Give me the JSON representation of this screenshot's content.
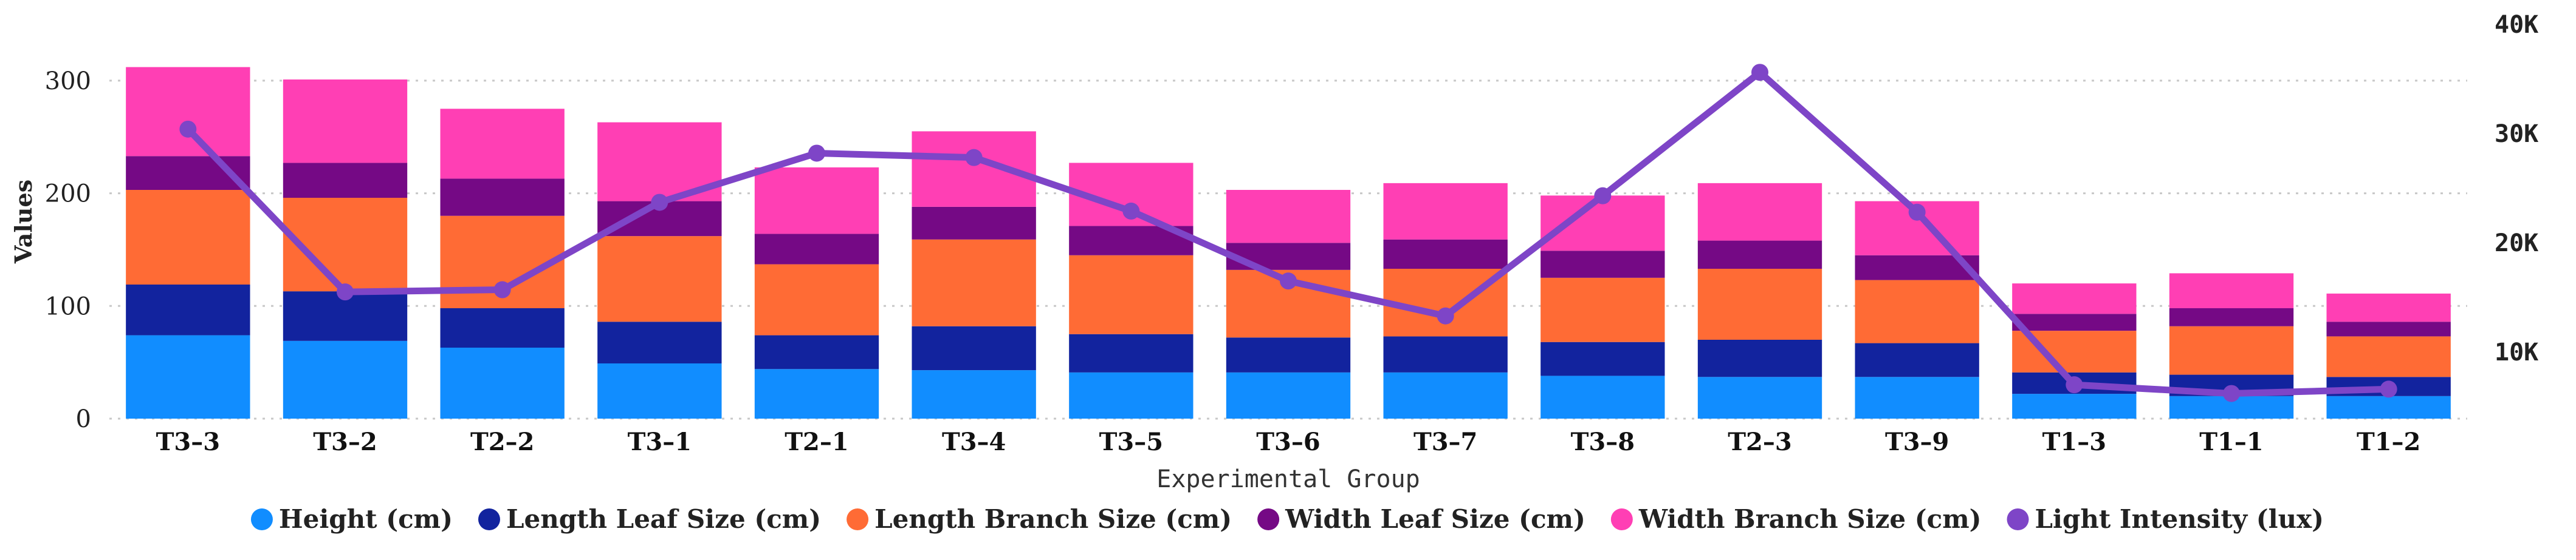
{
  "chart_data": {
    "type": "bar",
    "stacked": true,
    "categories": [
      "T3–3",
      "T3–2",
      "T2–2",
      "T3–1",
      "T2–1",
      "T3–4",
      "T3–5",
      "T3–6",
      "T3–7",
      "T3–8",
      "T2–3",
      "T3–9",
      "T1–3",
      "T1–1",
      "T1–2"
    ],
    "xlabel": "Experimental Group",
    "ylabel": "Values",
    "ylim": [
      0,
      350
    ],
    "yticks": [
      0,
      100,
      200,
      300
    ],
    "y2lim": [
      3900,
      40000
    ],
    "y2ticks": [
      10000,
      20000,
      30000,
      40000
    ],
    "y2tick_labels": [
      "10K",
      "20K",
      "30K",
      "40K"
    ],
    "grid": true,
    "legend_position": "bottom",
    "series": [
      {
        "name": "Height (cm)",
        "color": "#118DFF",
        "values": [
          74,
          69,
          63,
          49,
          44,
          43,
          41,
          41,
          41,
          38,
          37,
          37,
          22,
          20,
          20
        ]
      },
      {
        "name": "Length Leaf Size (cm)",
        "color": "#12239E",
        "values": [
          45,
          44,
          35,
          37,
          30,
          39,
          34,
          31,
          32,
          30,
          33,
          30,
          19,
          19,
          17
        ]
      },
      {
        "name": "Length Branch Size (cm)",
        "color": "#FF6B35",
        "values": [
          84,
          83,
          82,
          76,
          63,
          77,
          70,
          60,
          60,
          57,
          63,
          56,
          37,
          43,
          36
        ]
      },
      {
        "name": "Width Leaf Size (cm)",
        "color": "#750985",
        "values": [
          30,
          31,
          33,
          31,
          27,
          29,
          26,
          24,
          26,
          24,
          25,
          22,
          15,
          16,
          13
        ]
      },
      {
        "name": "Width Branch Size (cm)",
        "color": "#FF3FB4",
        "values": [
          79,
          74,
          62,
          70,
          59,
          67,
          56,
          47,
          50,
          49,
          51,
          48,
          27,
          31,
          25
        ]
      },
      {
        "name": "Light Intensity (lux)",
        "color": "#7E45C7",
        "type": "line",
        "axis": "right",
        "values": [
          30400,
          15500,
          15700,
          23700,
          28200,
          27800,
          22900,
          16500,
          13300,
          24300,
          35600,
          22800,
          7000,
          6200,
          6600
        ]
      }
    ]
  }
}
